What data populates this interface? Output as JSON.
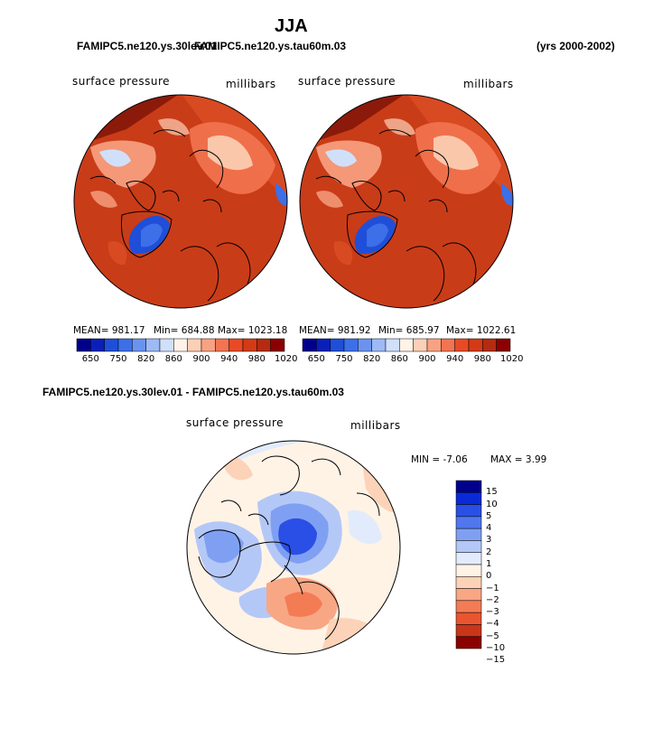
{
  "page_title": "JJA",
  "header": {
    "left_case": "FAMIPC5.ne120.ys.30lev.01",
    "left_overlap": "FAMIPC5.ne120.ys.tau60m.03",
    "right_years": "(yrs 2000-2002)"
  },
  "panels": [
    {
      "variable": "surface pressure",
      "units": "millibars",
      "mean_label": "MEAN=",
      "mean": "981.17",
      "min_label": "Min=",
      "min": "684.88",
      "max_label": "Max=",
      "max": "1023.18"
    },
    {
      "variable": "surface pressure",
      "units": "millibars",
      "mean_label": "MEAN=",
      "mean": "981.92",
      "min_label": "Min=",
      "min": "685.97",
      "max_label": "Max=",
      "max": "1022.61"
    }
  ],
  "diff_panel": {
    "title": "FAMIPC5.ne120.ys.30lev.01 - FAMIPC5.ne120.ys.tau60m.03",
    "variable": "surface pressure",
    "units": "millibars",
    "min_label": "MIN =",
    "min": "-7.06",
    "max_label": "MAX =",
    "max": "3.99"
  },
  "colors": {
    "abs_scale": [
      "#00008b",
      "#0a1fb8",
      "#1f4fd8",
      "#3c6fe8",
      "#6a93f0",
      "#9dbaf6",
      "#d0e0fa",
      "#fff2e8",
      "#fcd0b6",
      "#f8a283",
      "#f37451",
      "#e84a26",
      "#d43a16",
      "#b52b10",
      "#8b0000"
    ],
    "diff_scale": [
      "#00008b",
      "#0a2ad8",
      "#2a4fe6",
      "#5077ee",
      "#7fa0f2",
      "#b4c8f7",
      "#e2ebfb",
      "#fff3e6",
      "#fcd3b8",
      "#f8a785",
      "#f37c55",
      "#e85530",
      "#c8361a",
      "#8b0000"
    ]
  },
  "chart_data": [
    {
      "type": "heatmap",
      "title": "surface pressure",
      "units": "millibars",
      "case": "FAMIPC5.ne120.ys.30lev.01",
      "projection": "north polar stereographic",
      "colorbar_levels": [
        650,
        700,
        750,
        800,
        820,
        840,
        860,
        880,
        900,
        920,
        940,
        960,
        980,
        1000,
        1020
      ],
      "colorbar_tick_labels": [
        "650",
        "750",
        "820",
        "860",
        "900",
        "940",
        "980",
        "1020"
      ],
      "stats": {
        "mean": 981.17,
        "min": 684.88,
        "max": 1023.18
      }
    },
    {
      "type": "heatmap",
      "title": "surface pressure",
      "units": "millibars",
      "case": "FAMIPC5.ne120.ys.tau60m.03",
      "projection": "north polar stereographic",
      "colorbar_levels": [
        650,
        700,
        750,
        800,
        820,
        840,
        860,
        880,
        900,
        920,
        940,
        960,
        980,
        1000,
        1020
      ],
      "colorbar_tick_labels": [
        "650",
        "750",
        "820",
        "860",
        "900",
        "940",
        "980",
        "1020"
      ],
      "stats": {
        "mean": 981.92,
        "min": 685.97,
        "max": 1022.61
      }
    },
    {
      "type": "heatmap",
      "title": "FAMIPC5.ne120.ys.30lev.01 - FAMIPC5.ne120.ys.tau60m.03",
      "variable": "surface pressure",
      "units": "millibars",
      "projection": "north polar stereographic",
      "colorbar_levels": [
        15,
        10,
        5,
        4,
        3,
        2,
        1,
        0,
        -1,
        -2,
        -3,
        -4,
        -5,
        -10,
        -15
      ],
      "colorbar_tick_labels": [
        "15",
        "10",
        "5",
        "4",
        "3",
        "2",
        "1",
        "0",
        "−1",
        "−2",
        "−3",
        "−4",
        "−5",
        "−10",
        "−15"
      ],
      "stats": {
        "min": -7.06,
        "max": 3.99
      }
    }
  ]
}
